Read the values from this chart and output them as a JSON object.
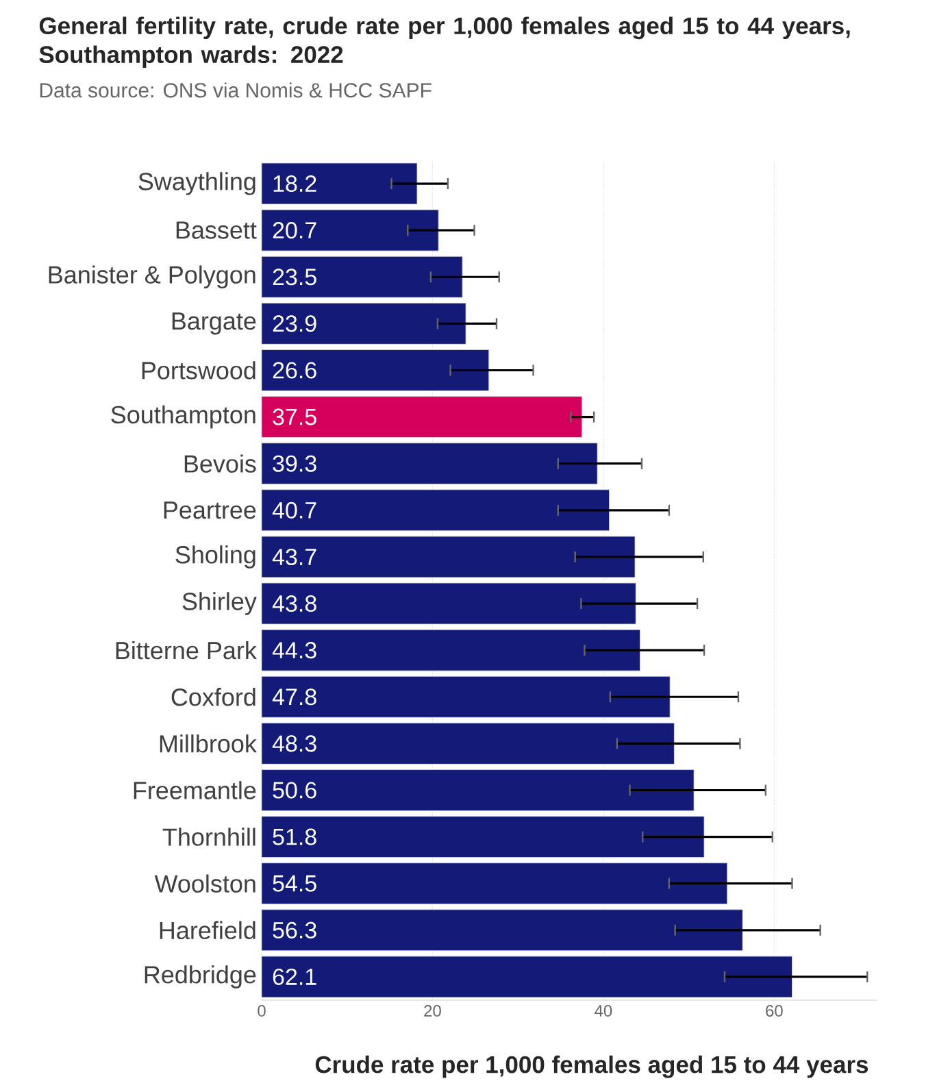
{
  "chart_data": {
    "type": "bar",
    "orientation": "horizontal",
    "title": "General fertility rate, crude rate per 1,000 females aged 15 to 44 years, Southampton wards: 2022",
    "subtitle": "Data source: ONS via Nomis & HCC SAPF",
    "xlabel": "Crude rate per 1,000 females aged 15 to 44 years",
    "categories": [
      "Swaythling",
      "Bassett",
      "Banister & Polygon",
      "Bargate",
      "Portswood",
      "Southampton",
      "Bevois",
      "Peartree",
      "Sholing",
      "Shirley",
      "Bitterne Park",
      "Coxford",
      "Millbrook",
      "Freemantle",
      "Thornhill",
      "Woolston",
      "Harefield",
      "Redbridge"
    ],
    "values": [
      18.2,
      20.7,
      23.5,
      23.9,
      26.6,
      37.5,
      39.3,
      40.7,
      43.7,
      43.8,
      44.3,
      47.8,
      48.3,
      50.6,
      51.8,
      54.5,
      56.3,
      62.1
    ],
    "colors": [
      "#131a78",
      "#131a78",
      "#131a78",
      "#131a78",
      "#131a78",
      "#d6005c",
      "#131a78",
      "#131a78",
      "#131a78",
      "#131a78",
      "#131a78",
      "#131a78",
      "#131a78",
      "#131a78",
      "#131a78",
      "#131a78",
      "#131a78",
      "#131a78"
    ],
    "errors": [
      [
        15.2,
        21.8
      ],
      [
        17.1,
        24.9
      ],
      [
        19.8,
        27.8
      ],
      [
        20.6,
        27.5
      ],
      [
        22.1,
        31.8
      ],
      [
        36.2,
        38.9
      ],
      [
        34.7,
        44.5
      ],
      [
        34.7,
        47.7
      ],
      [
        36.7,
        51.7
      ],
      [
        37.4,
        51.0
      ],
      [
        37.8,
        51.8
      ],
      [
        40.8,
        55.8
      ],
      [
        41.6,
        56.0
      ],
      [
        43.1,
        59.0
      ],
      [
        44.6,
        59.8
      ],
      [
        47.7,
        62.1
      ],
      [
        48.4,
        65.4
      ],
      [
        54.2,
        70.9
      ]
    ],
    "xlim": [
      0,
      72
    ],
    "xticks": [
      0,
      20,
      40,
      60
    ],
    "grid": "x",
    "data_labels": true
  }
}
